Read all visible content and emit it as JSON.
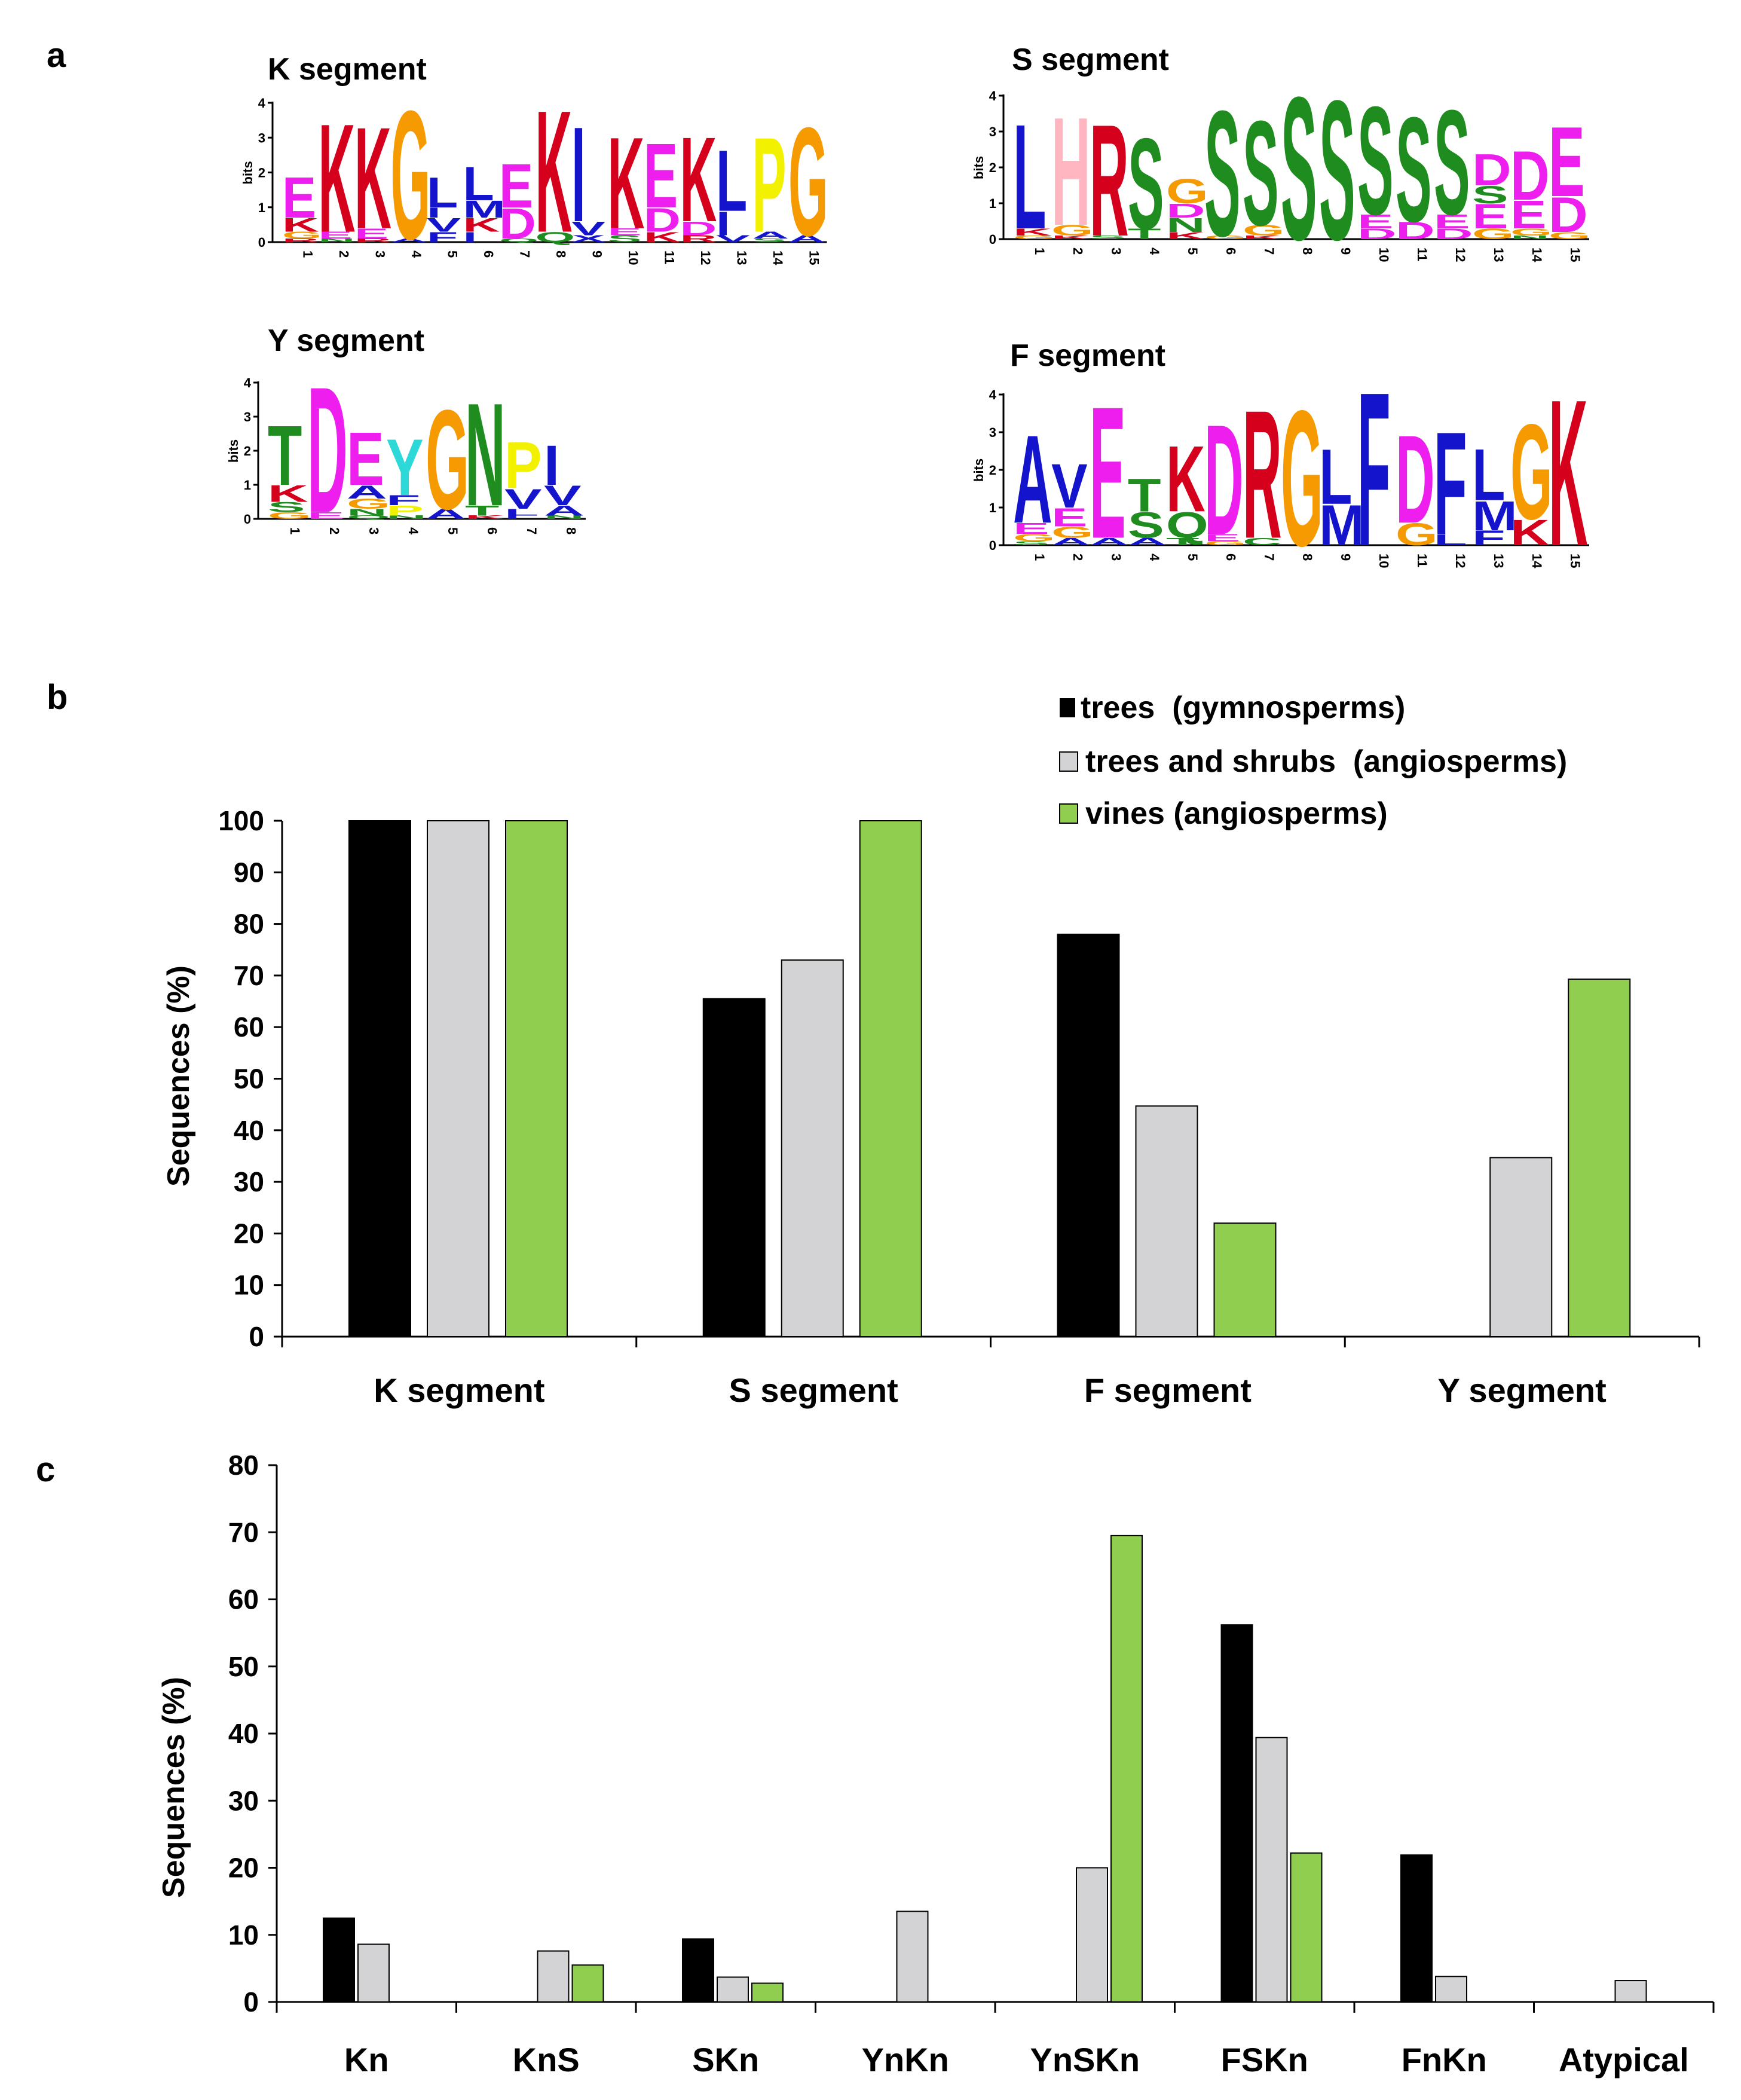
{
  "panel_labels": {
    "a": "a",
    "b": "b",
    "c": "c"
  },
  "logo_colors": {
    "K": "#d4001c",
    "R": "#d4001c",
    "E": "#ee1fee",
    "D": "#ee1fee",
    "G": "#f59a00",
    "L": "#1414cc",
    "I": "#1414cc",
    "V": "#1414cc",
    "M": "#1414cc",
    "A": "#1414cc",
    "F": "#1414cc",
    "S": "#1e8c1e",
    "T": "#1e8c1e",
    "N": "#1e8c1e",
    "Q": "#1e8c1e",
    "C": "#1e8c1e",
    "Y": "#2cd8d8",
    "P": "#f2f200",
    "H": "#ffb6c1",
    "X": "#1414cc",
    "W": "#1414cc",
    "O": "#1414cc",
    "U": "#1414cc"
  },
  "logos": [
    {
      "title": "K segment",
      "ylabel": "bits",
      "yticks": [
        "0",
        "1",
        "2",
        "3",
        "4"
      ],
      "positions": [
        "1",
        "2",
        "3",
        "4",
        "5",
        "6",
        "7",
        "8",
        "9",
        "10",
        "11",
        "12",
        "13",
        "14",
        "15"
      ],
      "columns": [
        [
          [
            "E",
            1.2
          ],
          [
            "K",
            0.4
          ],
          [
            "G",
            0.2
          ],
          [
            "R",
            0.1
          ]
        ],
        [
          [
            "K",
            3.2
          ],
          [
            "E",
            0.2
          ],
          [
            "N",
            0.1
          ]
        ],
        [
          [
            "K",
            3.0
          ],
          [
            "E",
            0.3
          ],
          [
            "R",
            0.1
          ]
        ],
        [
          [
            "G",
            3.8
          ],
          [
            "A",
            0.1
          ]
        ],
        [
          [
            "L",
            0.9
          ],
          [
            "I",
            0.3
          ],
          [
            "V",
            0.4
          ],
          [
            "F",
            0.3
          ]
        ],
        [
          [
            "L",
            1.0
          ],
          [
            "M",
            0.5
          ],
          [
            "K",
            0.4
          ],
          [
            "I",
            0.3
          ]
        ],
        [
          [
            "E",
            1.3
          ],
          [
            "D",
            0.9
          ],
          [
            "Q",
            0.1
          ]
        ],
        [
          [
            "K",
            3.6
          ],
          [
            "Q",
            0.3
          ]
        ],
        [
          [
            "I",
            2.8
          ],
          [
            "V",
            0.4
          ],
          [
            "X",
            0.2
          ]
        ],
        [
          [
            "K",
            2.7
          ],
          [
            "E",
            0.2
          ],
          [
            "S",
            0.2
          ]
        ],
        [
          [
            "E",
            1.9
          ],
          [
            "D",
            0.7
          ],
          [
            "K",
            0.3
          ]
        ],
        [
          [
            "K",
            2.5
          ],
          [
            "D",
            0.4
          ],
          [
            "R",
            0.2
          ]
        ],
        [
          [
            "L",
            1.8
          ],
          [
            "I",
            0.7
          ],
          [
            "V",
            0.2
          ]
        ],
        [
          [
            "P",
            2.8
          ],
          [
            "A",
            0.2
          ],
          [
            "S",
            0.1
          ]
        ],
        [
          [
            "G",
            3.2
          ],
          [
            "A",
            0.2
          ]
        ]
      ]
    },
    {
      "title": "S segment",
      "ylabel": "bits",
      "yticks": [
        "0",
        "1",
        "2",
        "3",
        "4"
      ],
      "positions": [
        "1",
        "2",
        "3",
        "4",
        "5",
        "6",
        "7",
        "8",
        "9",
        "10",
        "11",
        "12",
        "13",
        "14",
        "15"
      ],
      "columns": [
        [
          [
            "L",
            3.0
          ],
          [
            "K",
            0.2
          ],
          [
            "G",
            0.1
          ]
        ],
        [
          [
            "H",
            3.1
          ],
          [
            "G",
            0.3
          ],
          [
            "K",
            0.1
          ]
        ],
        [
          [
            "R",
            3.2
          ],
          [
            "S",
            0.1
          ]
        ],
        [
          [
            "S",
            2.6
          ],
          [
            "T",
            0.3
          ]
        ],
        [
          [
            "G",
            0.7
          ],
          [
            "D",
            0.4
          ],
          [
            "N",
            0.4
          ],
          [
            "K",
            0.2
          ]
        ],
        [
          [
            "S",
            3.6
          ],
          [
            "G",
            0.1
          ]
        ],
        [
          [
            "S",
            3.0
          ],
          [
            "G",
            0.3
          ],
          [
            "K",
            0.1
          ]
        ],
        [
          [
            "S",
            4.1
          ]
        ],
        [
          [
            "S",
            4.0
          ]
        ],
        [
          [
            "S",
            3.1
          ],
          [
            "E",
            0.4
          ],
          [
            "D",
            0.3
          ]
        ],
        [
          [
            "S",
            3.0
          ],
          [
            "D",
            0.5
          ]
        ],
        [
          [
            "S",
            3.0
          ],
          [
            "E",
            0.4
          ],
          [
            "D",
            0.3
          ]
        ],
        [
          [
            "D",
            0.9
          ],
          [
            "S",
            0.5
          ],
          [
            "E",
            0.7
          ],
          [
            "G",
            0.3
          ]
        ],
        [
          [
            "D",
            1.4
          ],
          [
            "E",
            0.8
          ],
          [
            "G",
            0.2
          ],
          [
            "N",
            0.1
          ]
        ],
        [
          [
            "E",
            2.0
          ],
          [
            "D",
            1.0
          ],
          [
            "G",
            0.2
          ]
        ]
      ]
    },
    {
      "title": "Y segment",
      "ylabel": "bits",
      "yticks": [
        "0",
        "1",
        "2",
        "3",
        "4"
      ],
      "positions": [
        "1",
        "2",
        "3",
        "4",
        "5",
        "6",
        "7",
        "8"
      ],
      "columns": [
        [
          [
            "T",
            1.8
          ],
          [
            "K",
            0.5
          ],
          [
            "S",
            0.3
          ],
          [
            "G",
            0.2
          ]
        ],
        [
          [
            "D",
            3.8
          ],
          [
            "E",
            0.2
          ]
        ],
        [
          [
            "E",
            1.6
          ],
          [
            "A",
            0.4
          ],
          [
            "G",
            0.3
          ],
          [
            "N",
            0.2
          ],
          [
            "Q",
            0.1
          ]
        ],
        [
          [
            "Y",
            1.7
          ],
          [
            "F",
            0.3
          ],
          [
            "P",
            0.3
          ],
          [
            "N",
            0.1
          ]
        ],
        [
          [
            "G",
            3.0
          ],
          [
            "A",
            0.3
          ]
        ],
        [
          [
            "N",
            3.1
          ],
          [
            "T",
            0.3
          ],
          [
            "K",
            0.1
          ]
        ],
        [
          [
            "P",
            1.4
          ],
          [
            "V",
            0.6
          ],
          [
            "L",
            0.2
          ],
          [
            "I",
            0.1
          ]
        ],
        [
          [
            "I",
            1.2
          ],
          [
            "V",
            0.6
          ],
          [
            "A",
            0.3
          ],
          [
            "N",
            0.1
          ]
        ]
      ]
    },
    {
      "title": "F segment",
      "ylabel": "bits",
      "yticks": [
        "0",
        "1",
        "2",
        "3",
        "4"
      ],
      "positions": [
        "1",
        "2",
        "3",
        "4",
        "5",
        "6",
        "7",
        "8",
        "9",
        "10",
        "11",
        "12",
        "13",
        "14",
        "15"
      ],
      "columns": [
        [
          [
            "A",
            2.4
          ],
          [
            "E",
            0.3
          ],
          [
            "G",
            0.2
          ],
          [
            "S",
            0.1
          ]
        ],
        [
          [
            "V",
            1.2
          ],
          [
            "E",
            0.5
          ],
          [
            "G",
            0.3
          ],
          [
            "A",
            0.2
          ]
        ],
        [
          [
            "E",
            3.6
          ],
          [
            "A",
            0.2
          ]
        ],
        [
          [
            "T",
            0.9
          ],
          [
            "S",
            0.7
          ],
          [
            "A",
            0.2
          ]
        ],
        [
          [
            "K",
            1.8
          ],
          [
            "Q",
            0.7
          ],
          [
            "T",
            0.2
          ]
        ],
        [
          [
            "D",
            3.0
          ],
          [
            "E",
            0.2
          ],
          [
            "G",
            0.1
          ]
        ],
        [
          [
            "R",
            3.5
          ],
          [
            "C",
            0.2
          ]
        ],
        [
          [
            "G",
            3.7
          ]
        ],
        [
          [
            "L",
            1.5
          ],
          [
            "M",
            1.1
          ]
        ],
        [
          [
            "F",
            4.2
          ]
        ],
        [
          [
            "D",
            2.4
          ],
          [
            "G",
            0.6
          ]
        ],
        [
          [
            "F",
            2.8
          ],
          [
            "L",
            0.3
          ]
        ],
        [
          [
            "L",
            1.4
          ],
          [
            "M",
            0.8
          ],
          [
            "F",
            0.4
          ]
        ],
        [
          [
            "G",
            2.6
          ],
          [
            "K",
            0.7
          ]
        ],
        [
          [
            "K",
            4.0
          ]
        ]
      ]
    }
  ],
  "chart_data": [
    {
      "type": "bar",
      "panel": "b",
      "categories": [
        "K segment",
        "S segment",
        "F segment",
        "Y segment"
      ],
      "series": [
        {
          "name": "trees  (gymnosperms)",
          "color": "#000000",
          "values": [
            100,
            65.5,
            78,
            0
          ]
        },
        {
          "name": "trees and shrubs  (angiosperms)",
          "color": "#d3d3d5",
          "values": [
            100,
            73,
            44.7,
            34.7
          ]
        },
        {
          "name": "vines (angiosperms)",
          "color": "#8fce4e",
          "values": [
            100,
            100,
            22,
            69.3
          ]
        }
      ],
      "ylabel": "Sequences (%)",
      "ylim": [
        0,
        100
      ],
      "yticks": [
        "0",
        "10",
        "20",
        "30",
        "40",
        "50",
        "60",
        "70",
        "80",
        "90",
        "100"
      ],
      "legend_position": "top-right"
    },
    {
      "type": "bar",
      "panel": "c",
      "categories": [
        "Kn",
        "KnS",
        "SKn",
        "YnKn",
        "YnSKn",
        "FSKn",
        "FnKn",
        "Atypical"
      ],
      "series": [
        {
          "name": "trees  (gymnosperms)",
          "color": "#000000",
          "values": [
            12.5,
            0,
            9.4,
            0,
            0,
            56.2,
            21.9,
            0
          ]
        },
        {
          "name": "trees and shrubs  (angiosperms)",
          "color": "#d3d3d5",
          "values": [
            8.6,
            7.6,
            3.7,
            13.5,
            20,
            39.4,
            3.8,
            3.2
          ]
        },
        {
          "name": "vines (angiosperms)",
          "color": "#8fce4e",
          "values": [
            0,
            5.5,
            2.8,
            0,
            69.5,
            22.2,
            0,
            0
          ]
        }
      ],
      "ylabel": "Sequences (%)",
      "ylim": [
        0,
        80
      ],
      "yticks": [
        "0",
        "10",
        "20",
        "30",
        "40",
        "50",
        "60",
        "70",
        "80"
      ]
    }
  ]
}
